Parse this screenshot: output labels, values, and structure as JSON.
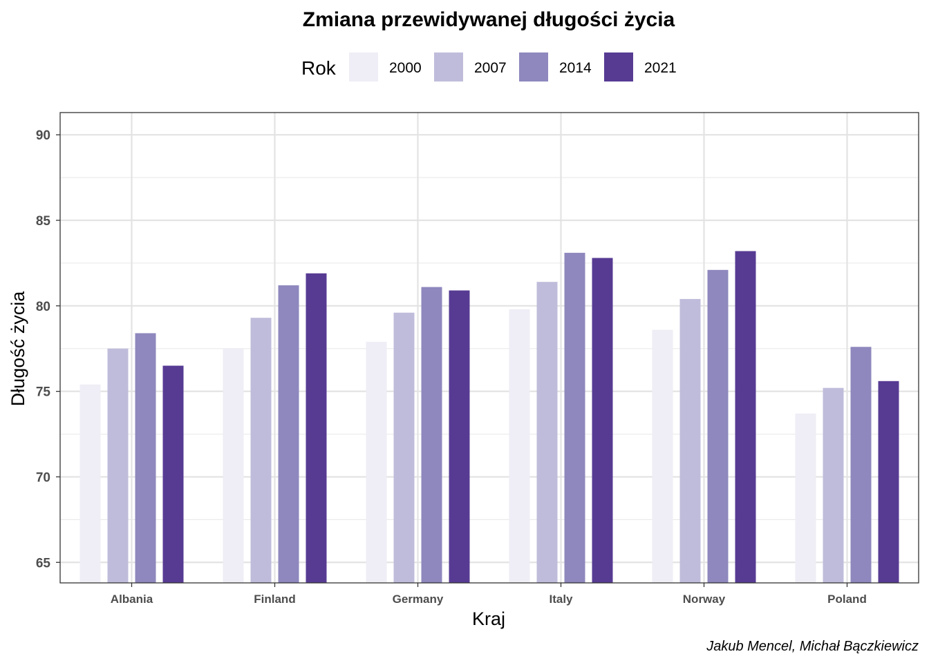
{
  "chart_data": {
    "type": "bar",
    "title": "Zmiana przewidywanej długości życia",
    "xlabel": "Kraj",
    "ylabel": "Długość życia",
    "caption": "Jakub Mencel, Michał Bączkiewicz",
    "legend": {
      "title": "Rok",
      "position": "top"
    },
    "categories": [
      "Albania",
      "Finland",
      "Germany",
      "Italy",
      "Norway",
      "Poland"
    ],
    "series": [
      {
        "name": "2000",
        "color": "#efedf5",
        "values": [
          75.4,
          77.5,
          77.9,
          79.8,
          78.6,
          73.7
        ]
      },
      {
        "name": "2007",
        "color": "#bfbcdb",
        "values": [
          77.5,
          79.3,
          79.6,
          81.4,
          80.4,
          75.2
        ]
      },
      {
        "name": "2014",
        "color": "#8e88be",
        "values": [
          78.4,
          81.2,
          81.1,
          83.1,
          82.1,
          77.6
        ]
      },
      {
        "name": "2021",
        "color": "#573b93",
        "values": [
          76.5,
          81.9,
          80.9,
          82.8,
          83.2,
          75.6
        ]
      }
    ],
    "yticks": [
      "65",
      "70",
      "75",
      "80",
      "85",
      "90"
    ],
    "ylim": [
      63.8,
      91.3
    ],
    "grid": true
  }
}
